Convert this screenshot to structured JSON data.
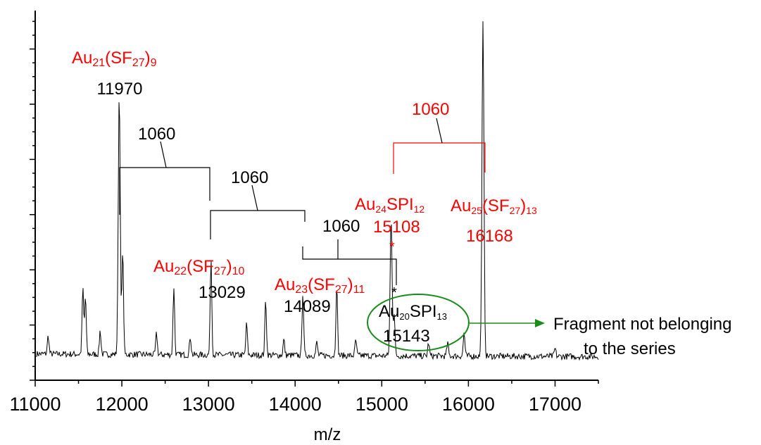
{
  "chart_data": {
    "type": "line",
    "xlabel": "m/z",
    "ylabel": "",
    "xlim": [
      11000,
      17500
    ],
    "x_ticks": [
      "11000",
      "12000",
      "13000",
      "14000",
      "15000",
      "16000",
      "17000"
    ],
    "grid": false,
    "series": [
      {
        "peaks": [
          {
            "x": 11150,
            "y": 0.07
          },
          {
            "x": 11550,
            "y": 0.25
          },
          {
            "x": 11580,
            "y": 0.22
          },
          {
            "x": 11750,
            "y": 0.09
          },
          {
            "x": 11970,
            "y": 1.0
          },
          {
            "x": 12010,
            "y": 0.4
          },
          {
            "x": 12400,
            "y": 0.08
          },
          {
            "x": 12600,
            "y": 0.26
          },
          {
            "x": 12790,
            "y": 0.07
          },
          {
            "x": 13029,
            "y": 0.37
          },
          {
            "x": 13440,
            "y": 0.12
          },
          {
            "x": 13660,
            "y": 0.21
          },
          {
            "x": 13870,
            "y": 0.06
          },
          {
            "x": 14089,
            "y": 0.24
          },
          {
            "x": 14250,
            "y": 0.05
          },
          {
            "x": 14480,
            "y": 0.27
          },
          {
            "x": 14700,
            "y": 0.06
          },
          {
            "x": 15108,
            "y": 0.52
          },
          {
            "x": 15143,
            "y": 0.16
          },
          {
            "x": 15540,
            "y": 0.05
          },
          {
            "x": 15760,
            "y": 0.05
          },
          {
            "x": 15950,
            "y": 0.09
          },
          {
            "x": 16168,
            "y": 1.27
          },
          {
            "x": 17000,
            "y": 0.03
          }
        ]
      }
    ],
    "annotations": {
      "a21": {
        "text": "Au",
        "sub1": "21",
        "mid": "(SF",
        "sub2": "27",
        "end": ")",
        "sub3": "9",
        "mass": "11970"
      },
      "a22": {
        "text": "Au",
        "sub1": "22",
        "mid": "(SF",
        "sub2": "27",
        "end": ")",
        "sub3": "10",
        "mass": "13029"
      },
      "a23": {
        "text": "Au",
        "sub1": "23",
        "mid": "(SF",
        "sub2": "27",
        "end": ")",
        "sub3": "11",
        "mass": "14089"
      },
      "a24": {
        "text": "Au",
        "sub1": "24",
        "mid": "SPI",
        "sub2": "12",
        "mass": "15108"
      },
      "a25": {
        "text": "Au",
        "sub1": "25",
        "mid": "(SF",
        "sub2": "27",
        "end": ")",
        "sub3": "13",
        "mass": "16168"
      },
      "a20": {
        "text": "Au",
        "sub1": "20",
        "mid": "SPI",
        "sub2": "13",
        "mass": "15143"
      },
      "gap1": "1060",
      "gap2": "1060",
      "gap3": "1060",
      "gap4": "1060",
      "star": "*",
      "fragment_line1": "Fragment not belonging",
      "fragment_line2": "to the series"
    },
    "colors": {
      "red": "#ff0000",
      "black": "#000000",
      "green": "#1a8c1a"
    }
  }
}
